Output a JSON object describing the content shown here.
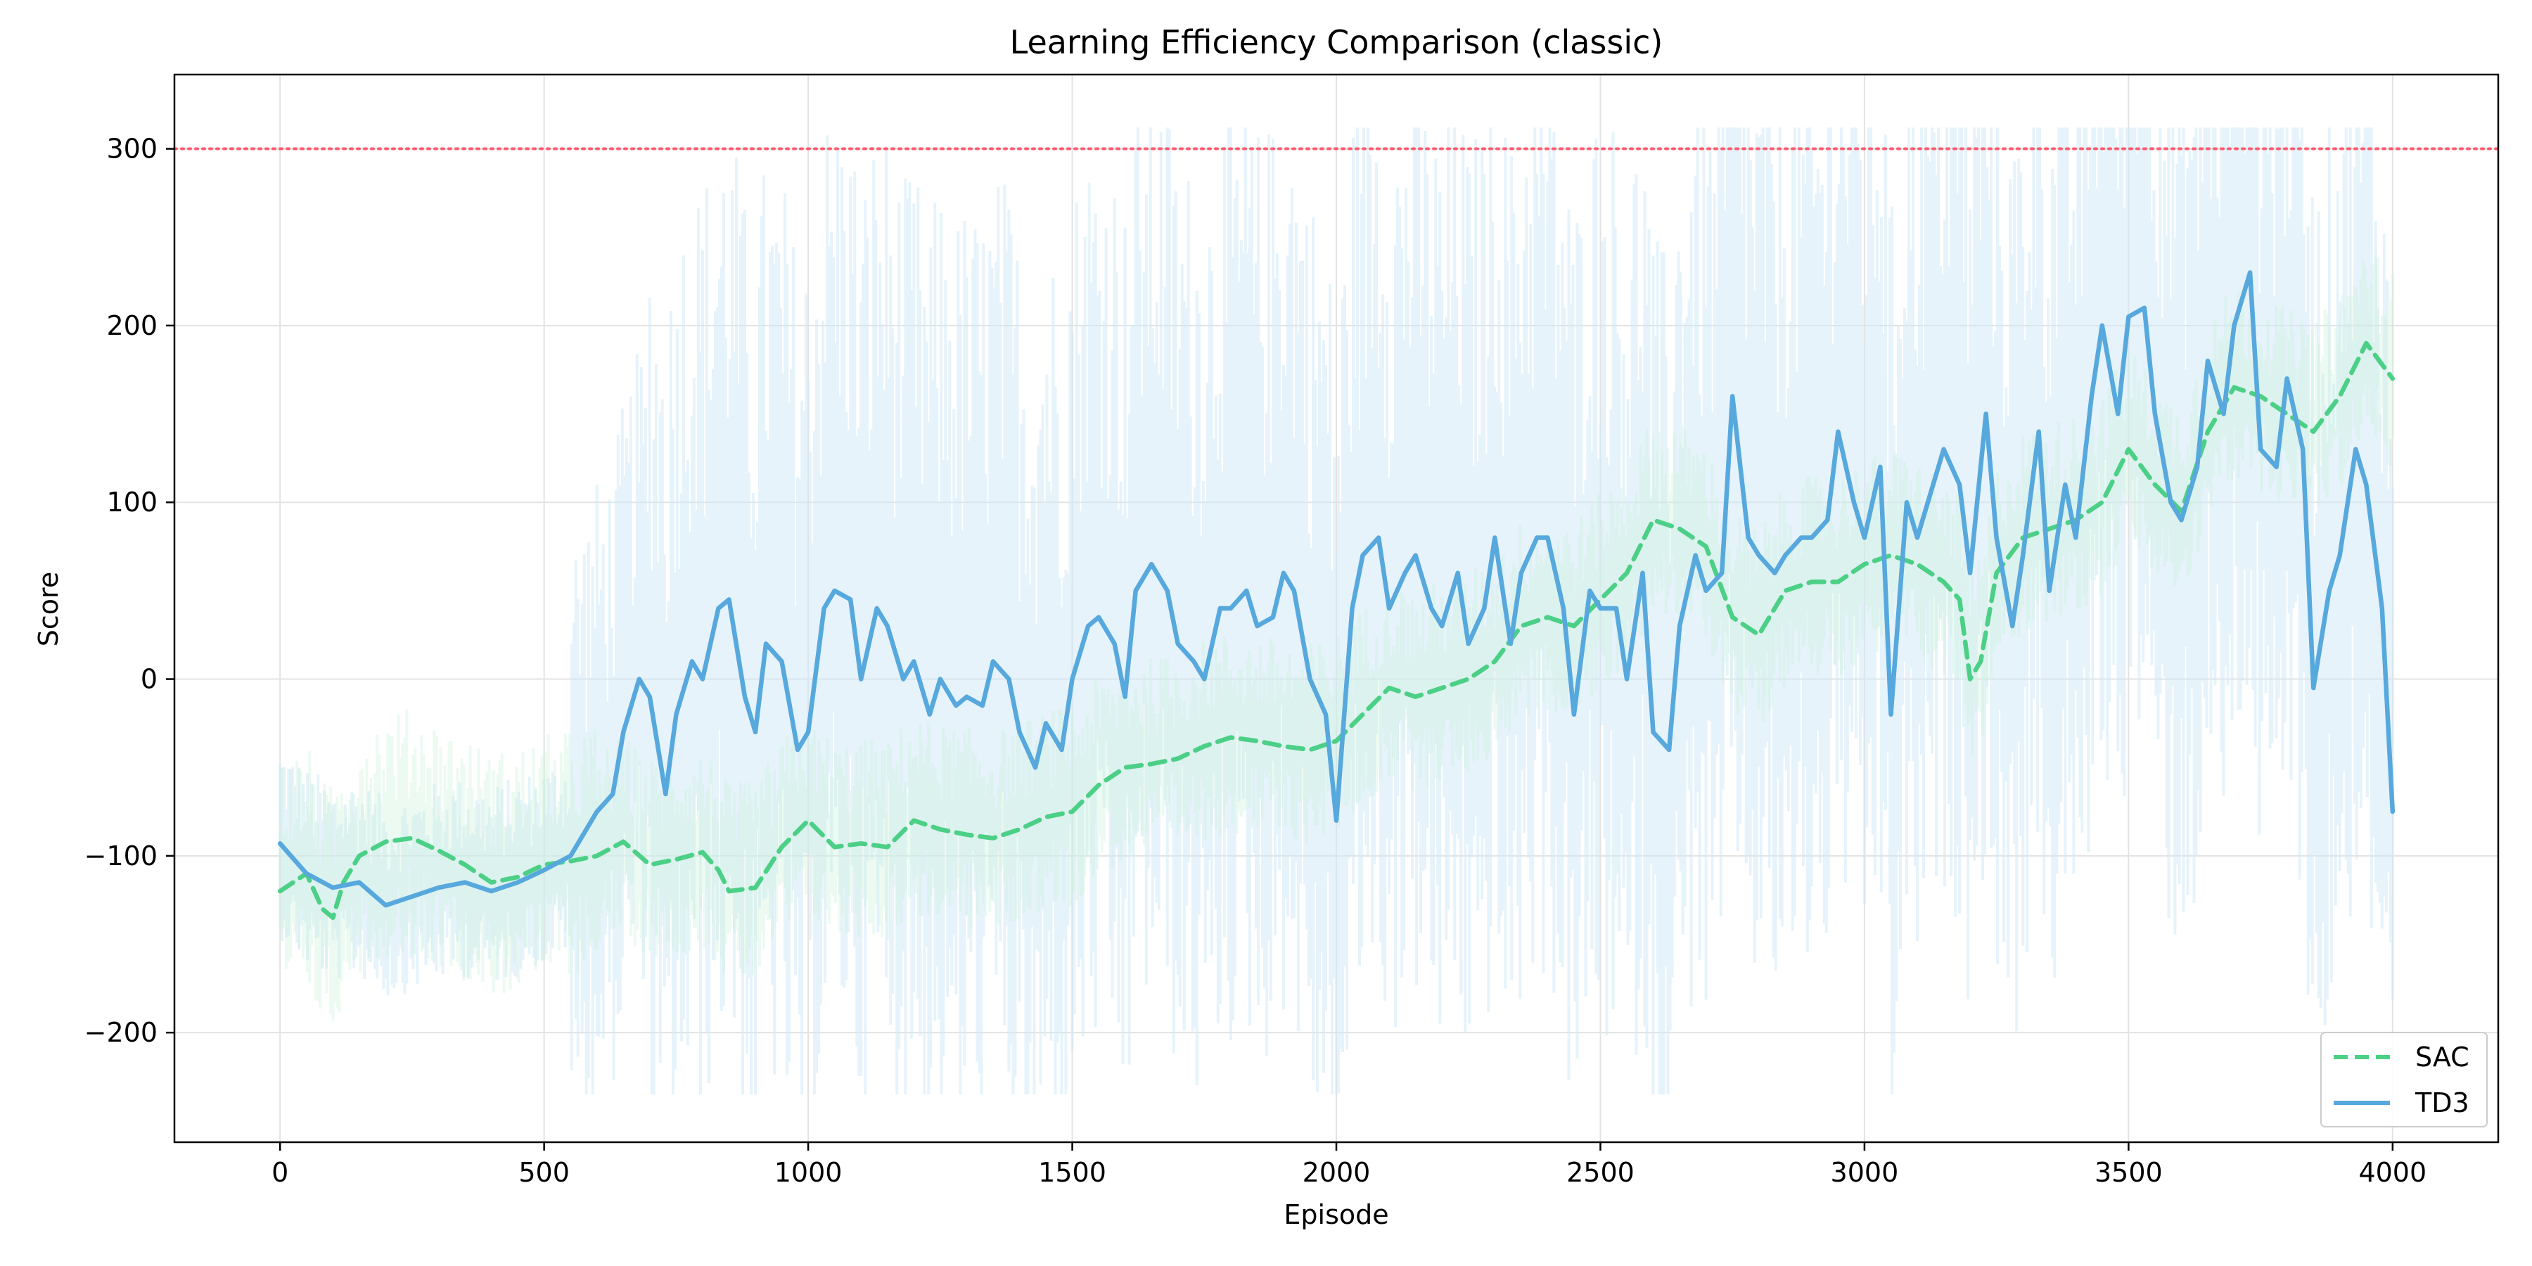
{
  "chart_data": {
    "type": "line",
    "title": "Learning Efficiency Comparison (classic)",
    "xlabel": "Episode",
    "ylabel": "Score",
    "xlim": [
      -200,
      4200
    ],
    "ylim": [
      -262,
      342
    ],
    "xticks": [
      0,
      500,
      1000,
      1500,
      2000,
      2500,
      3000,
      3500,
      4000
    ],
    "yticks": [
      -200,
      -100,
      0,
      100,
      200,
      300
    ],
    "xtick_labels": [
      "0",
      "500",
      "1000",
      "1500",
      "2000",
      "2500",
      "3000",
      "3500",
      "4000"
    ],
    "ytick_labels": [
      "−200",
      "−100",
      "0",
      "100",
      "200",
      "300"
    ],
    "grid": true,
    "legend_position": "lower-right",
    "reference_line": {
      "y": 300,
      "color": "#ff5a6e",
      "style": "dotted"
    },
    "series": [
      {
        "name": "SAC",
        "color": "#4ccf86",
        "style": "dashed",
        "x": [
          0,
          50,
          80,
          100,
          120,
          150,
          200,
          250,
          300,
          350,
          400,
          450,
          500,
          550,
          600,
          650,
          700,
          750,
          800,
          830,
          850,
          900,
          950,
          1000,
          1050,
          1100,
          1150,
          1200,
          1250,
          1300,
          1350,
          1400,
          1450,
          1500,
          1550,
          1600,
          1650,
          1700,
          1750,
          1800,
          1850,
          1900,
          1950,
          2000,
          2050,
          2100,
          2150,
          2200,
          2250,
          2300,
          2350,
          2400,
          2450,
          2500,
          2550,
          2600,
          2650,
          2700,
          2750,
          2800,
          2850,
          2900,
          2950,
          3000,
          3050,
          3100,
          3150,
          3180,
          3200,
          3220,
          3250,
          3300,
          3350,
          3400,
          3450,
          3500,
          3550,
          3600,
          3650,
          3700,
          3750,
          3800,
          3850,
          3900,
          3950,
          4000
        ],
        "y": [
          -120,
          -110,
          -130,
          -135,
          -115,
          -100,
          -92,
          -90,
          -97,
          -105,
          -115,
          -112,
          -105,
          -103,
          -100,
          -92,
          -105,
          -102,
          -98,
          -108,
          -120,
          -118,
          -95,
          -80,
          -95,
          -93,
          -95,
          -80,
          -85,
          -88,
          -90,
          -85,
          -78,
          -75,
          -60,
          -50,
          -48,
          -45,
          -38,
          -33,
          -35,
          -38,
          -40,
          -35,
          -20,
          -5,
          -10,
          -5,
          0,
          10,
          30,
          35,
          30,
          45,
          60,
          90,
          85,
          75,
          35,
          25,
          50,
          55,
          55,
          65,
          70,
          65,
          55,
          45,
          0,
          10,
          60,
          80,
          85,
          90,
          100,
          130,
          110,
          95,
          140,
          165,
          160,
          150,
          140,
          160,
          190,
          170
        ]
      },
      {
        "name": "TD3",
        "color": "#56a8dd",
        "style": "solid",
        "x": [
          0,
          50,
          100,
          150,
          200,
          250,
          300,
          350,
          400,
          450,
          500,
          550,
          600,
          630,
          650,
          680,
          700,
          730,
          750,
          780,
          800,
          830,
          850,
          880,
          900,
          920,
          950,
          980,
          1000,
          1030,
          1050,
          1080,
          1100,
          1130,
          1150,
          1180,
          1200,
          1230,
          1250,
          1280,
          1300,
          1330,
          1350,
          1380,
          1400,
          1430,
          1450,
          1480,
          1500,
          1530,
          1550,
          1580,
          1600,
          1620,
          1650,
          1680,
          1700,
          1730,
          1750,
          1780,
          1800,
          1830,
          1850,
          1880,
          1900,
          1920,
          1950,
          1980,
          2000,
          2030,
          2050,
          2080,
          2100,
          2130,
          2150,
          2180,
          2200,
          2230,
          2250,
          2280,
          2300,
          2330,
          2350,
          2380,
          2400,
          2430,
          2450,
          2480,
          2500,
          2530,
          2550,
          2580,
          2600,
          2630,
          2650,
          2680,
          2700,
          2730,
          2750,
          2780,
          2800,
          2830,
          2850,
          2880,
          2900,
          2930,
          2950,
          2980,
          3000,
          3030,
          3050,
          3080,
          3100,
          3130,
          3150,
          3180,
          3200,
          3230,
          3250,
          3280,
          3300,
          3330,
          3350,
          3380,
          3400,
          3430,
          3450,
          3480,
          3500,
          3530,
          3550,
          3580,
          3600,
          3630,
          3650,
          3680,
          3700,
          3730,
          3750,
          3780,
          3800,
          3830,
          3850,
          3880,
          3900,
          3930,
          3950,
          3980,
          4000
        ],
        "y": [
          -93,
          -110,
          -118,
          -115,
          -128,
          -123,
          -118,
          -115,
          -120,
          -115,
          -108,
          -100,
          -75,
          -65,
          -30,
          0,
          -10,
          -65,
          -20,
          10,
          0,
          40,
          45,
          -10,
          -30,
          20,
          10,
          -40,
          -30,
          40,
          50,
          45,
          0,
          40,
          30,
          0,
          10,
          -20,
          0,
          -15,
          -10,
          -15,
          10,
          0,
          -30,
          -50,
          -25,
          -40,
          0,
          30,
          35,
          20,
          -10,
          50,
          65,
          50,
          20,
          10,
          0,
          40,
          40,
          50,
          30,
          35,
          60,
          50,
          0,
          -20,
          -80,
          40,
          70,
          80,
          40,
          60,
          70,
          40,
          30,
          60,
          20,
          40,
          80,
          20,
          60,
          80,
          80,
          40,
          -20,
          50,
          40,
          40,
          0,
          60,
          -30,
          -40,
          30,
          70,
          50,
          60,
          160,
          80,
          70,
          60,
          70,
          80,
          80,
          90,
          140,
          100,
          80,
          120,
          -20,
          100,
          80,
          110,
          130,
          110,
          60,
          150,
          80,
          30,
          70,
          140,
          50,
          110,
          80,
          160,
          200,
          150,
          205,
          210,
          150,
          100,
          90,
          120,
          180,
          150,
          200,
          230,
          130,
          120,
          170,
          130,
          -5,
          50,
          70,
          130,
          110,
          40,
          -75
        ]
      }
    ]
  }
}
